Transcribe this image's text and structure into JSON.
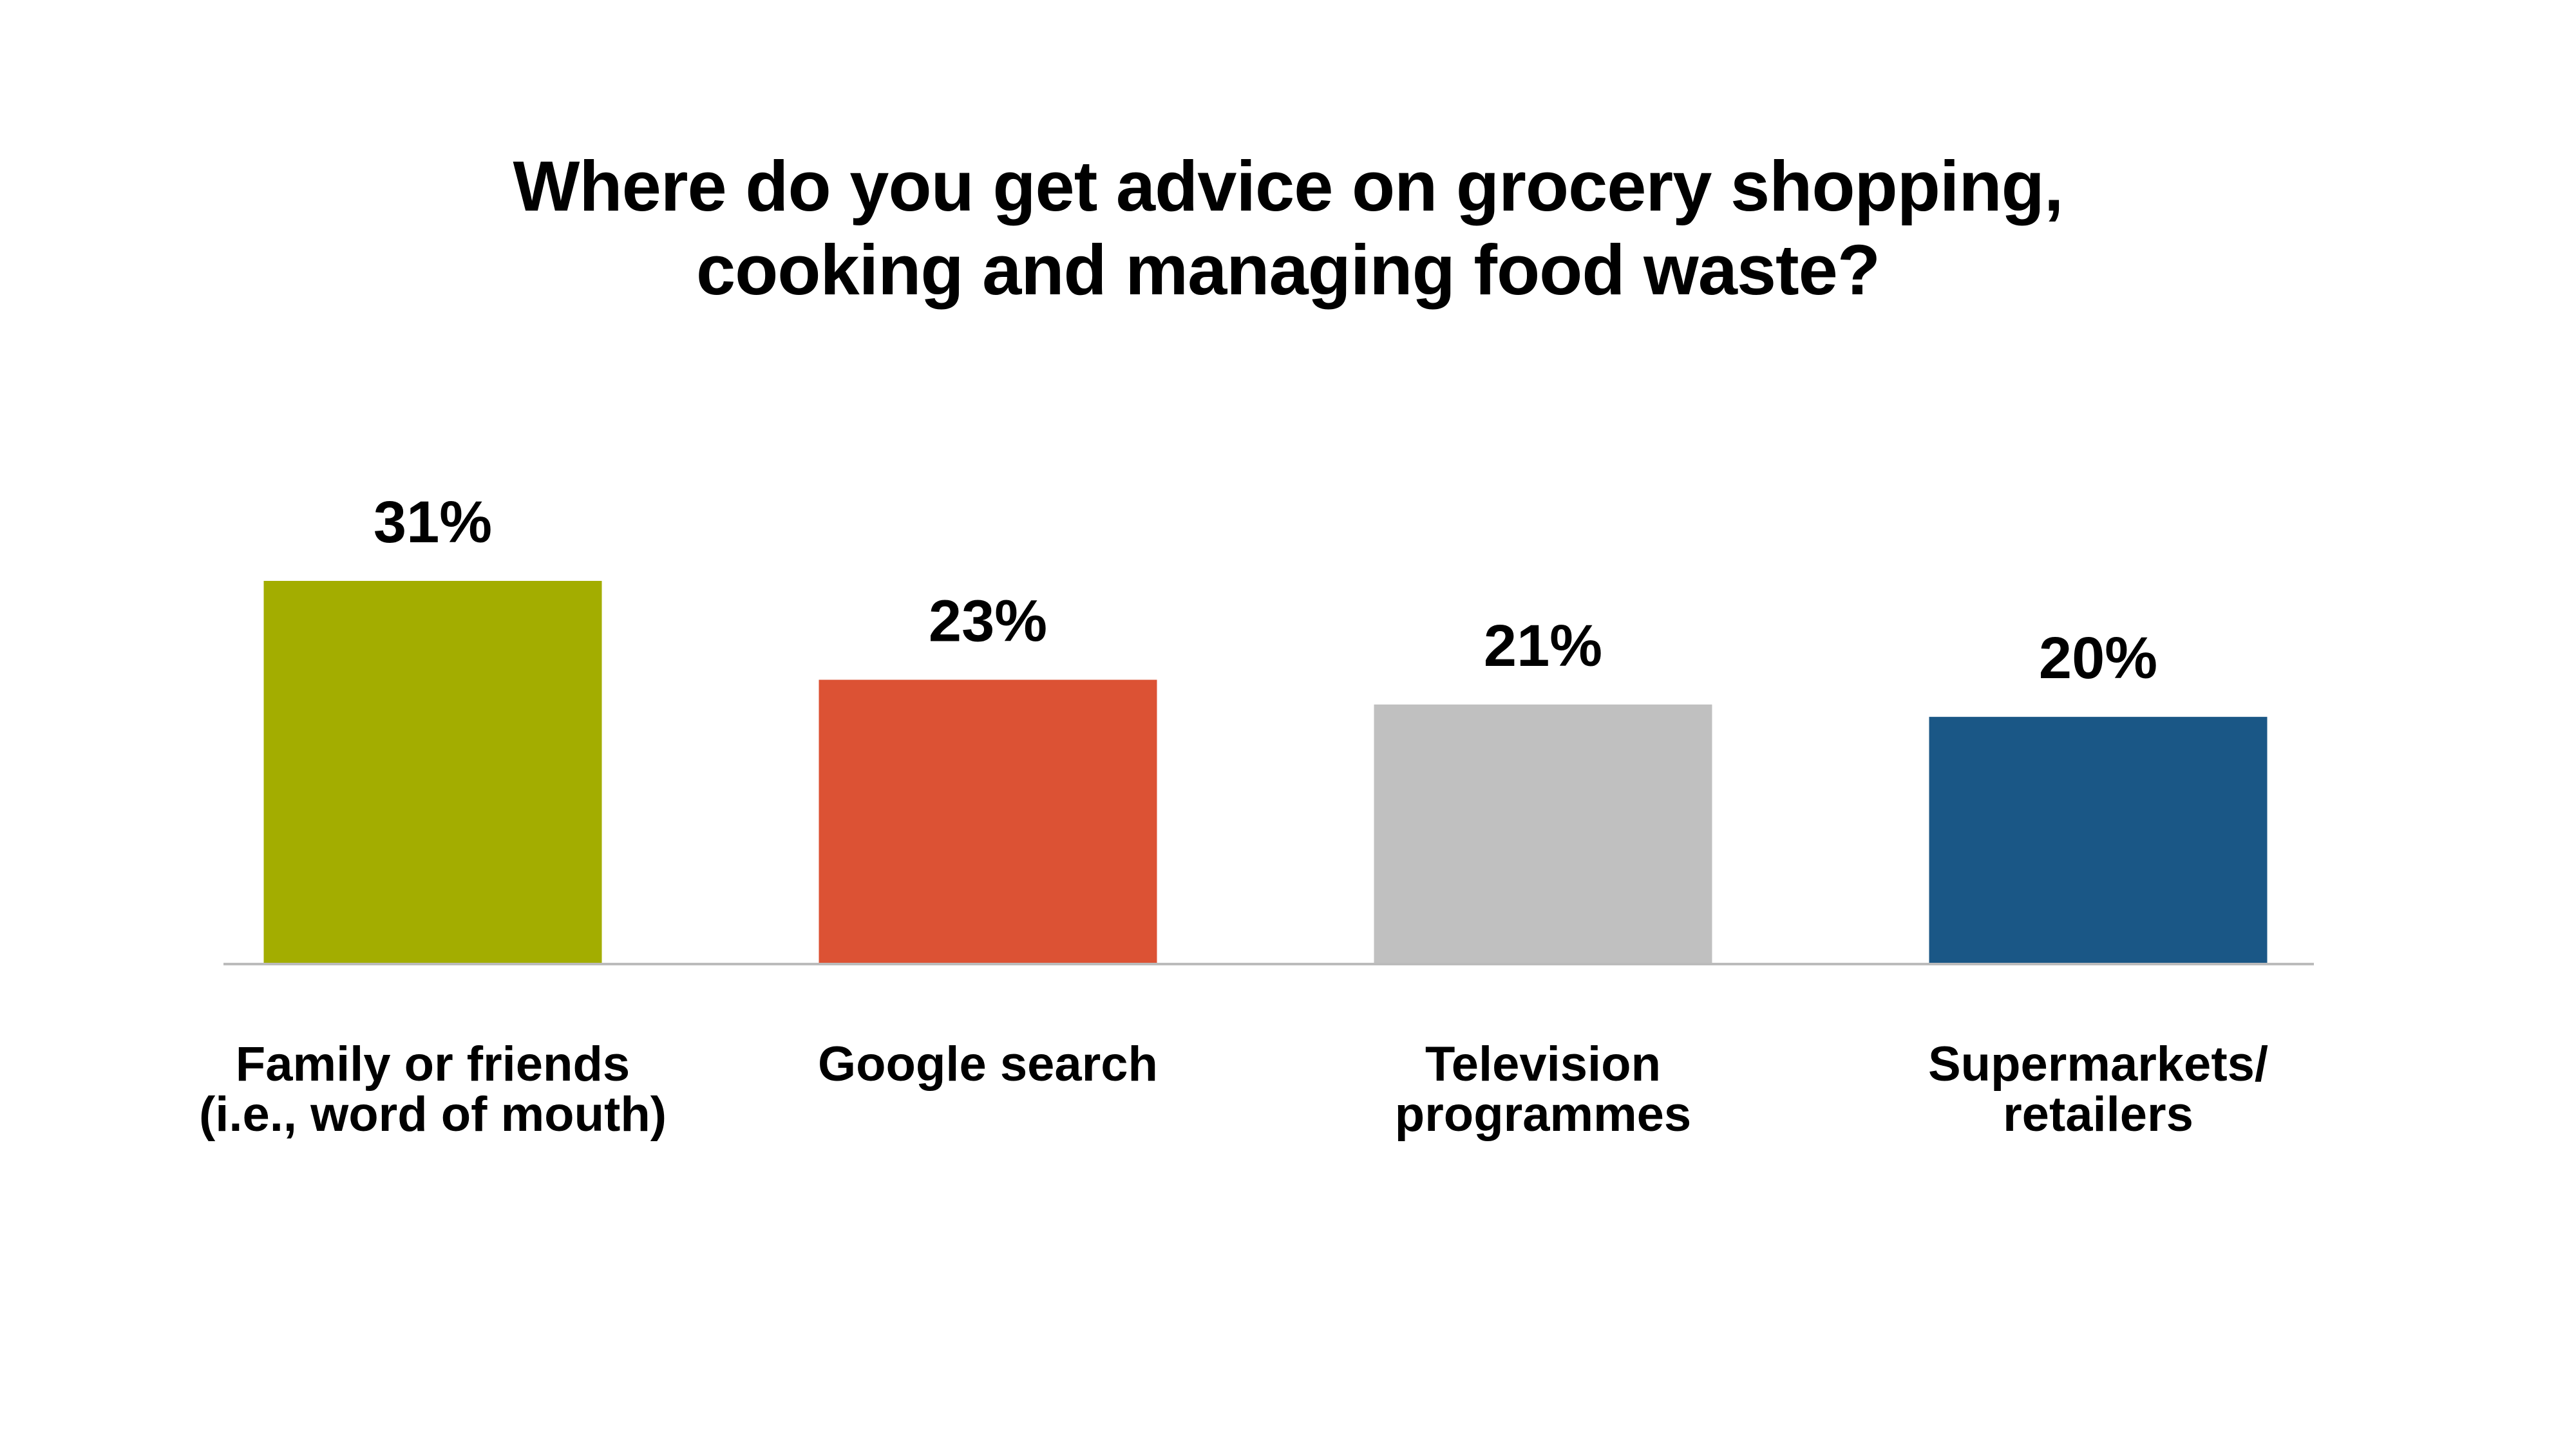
{
  "chart_data": {
    "type": "bar",
    "title_lines": [
      "Where do you get advice on grocery shopping,",
      "cooking and managing food waste?"
    ],
    "categories": [
      [
        "Family or friends",
        "(i.e., word of mouth)"
      ],
      [
        "Google search"
      ],
      [
        "Television",
        "programmes"
      ],
      [
        "Supermarkets/",
        "retailers"
      ]
    ],
    "values": [
      31,
      23,
      21,
      20
    ],
    "value_labels": [
      "31%",
      "23%",
      "21%",
      "20%"
    ],
    "colors": [
      "#A3AD00",
      "#DC5234",
      "#C0C0C0",
      "#1A5786"
    ],
    "ylim": [
      0,
      31
    ],
    "grid": false,
    "legend": "none",
    "axis_color": "#BBBBBB"
  }
}
